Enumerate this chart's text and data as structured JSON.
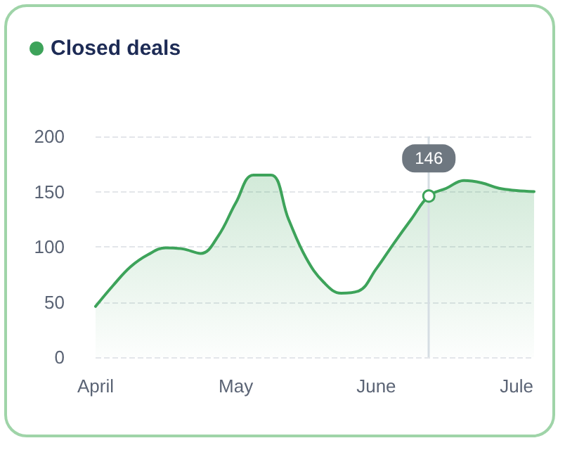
{
  "chart_data": {
    "type": "area",
    "categories": [
      "April",
      null,
      null,
      null,
      null,
      null,
      null,
      null,
      "May",
      null,
      null,
      null,
      null,
      null,
      null,
      null,
      "June",
      null,
      null,
      null,
      null,
      null,
      null,
      null,
      "Jule",
      null
    ],
    "series": [
      {
        "name": "Closed deals",
        "color": "#3da35a",
        "values": [
          46,
          65,
          82,
          93,
          99,
          98,
          94,
          110,
          140,
          165,
          165,
          125,
          90,
          68,
          58,
          60,
          80,
          103,
          125,
          146,
          153,
          160,
          158,
          153,
          151,
          150
        ]
      }
    ],
    "ylim": [
      0,
      200
    ],
    "yticks": [
      0,
      50,
      100,
      150,
      200
    ],
    "grid": "y",
    "legend": "top left",
    "marker": "none",
    "line_style": "solid",
    "annotations": [
      {
        "text": "146",
        "y": 146
      }
    ]
  }
}
